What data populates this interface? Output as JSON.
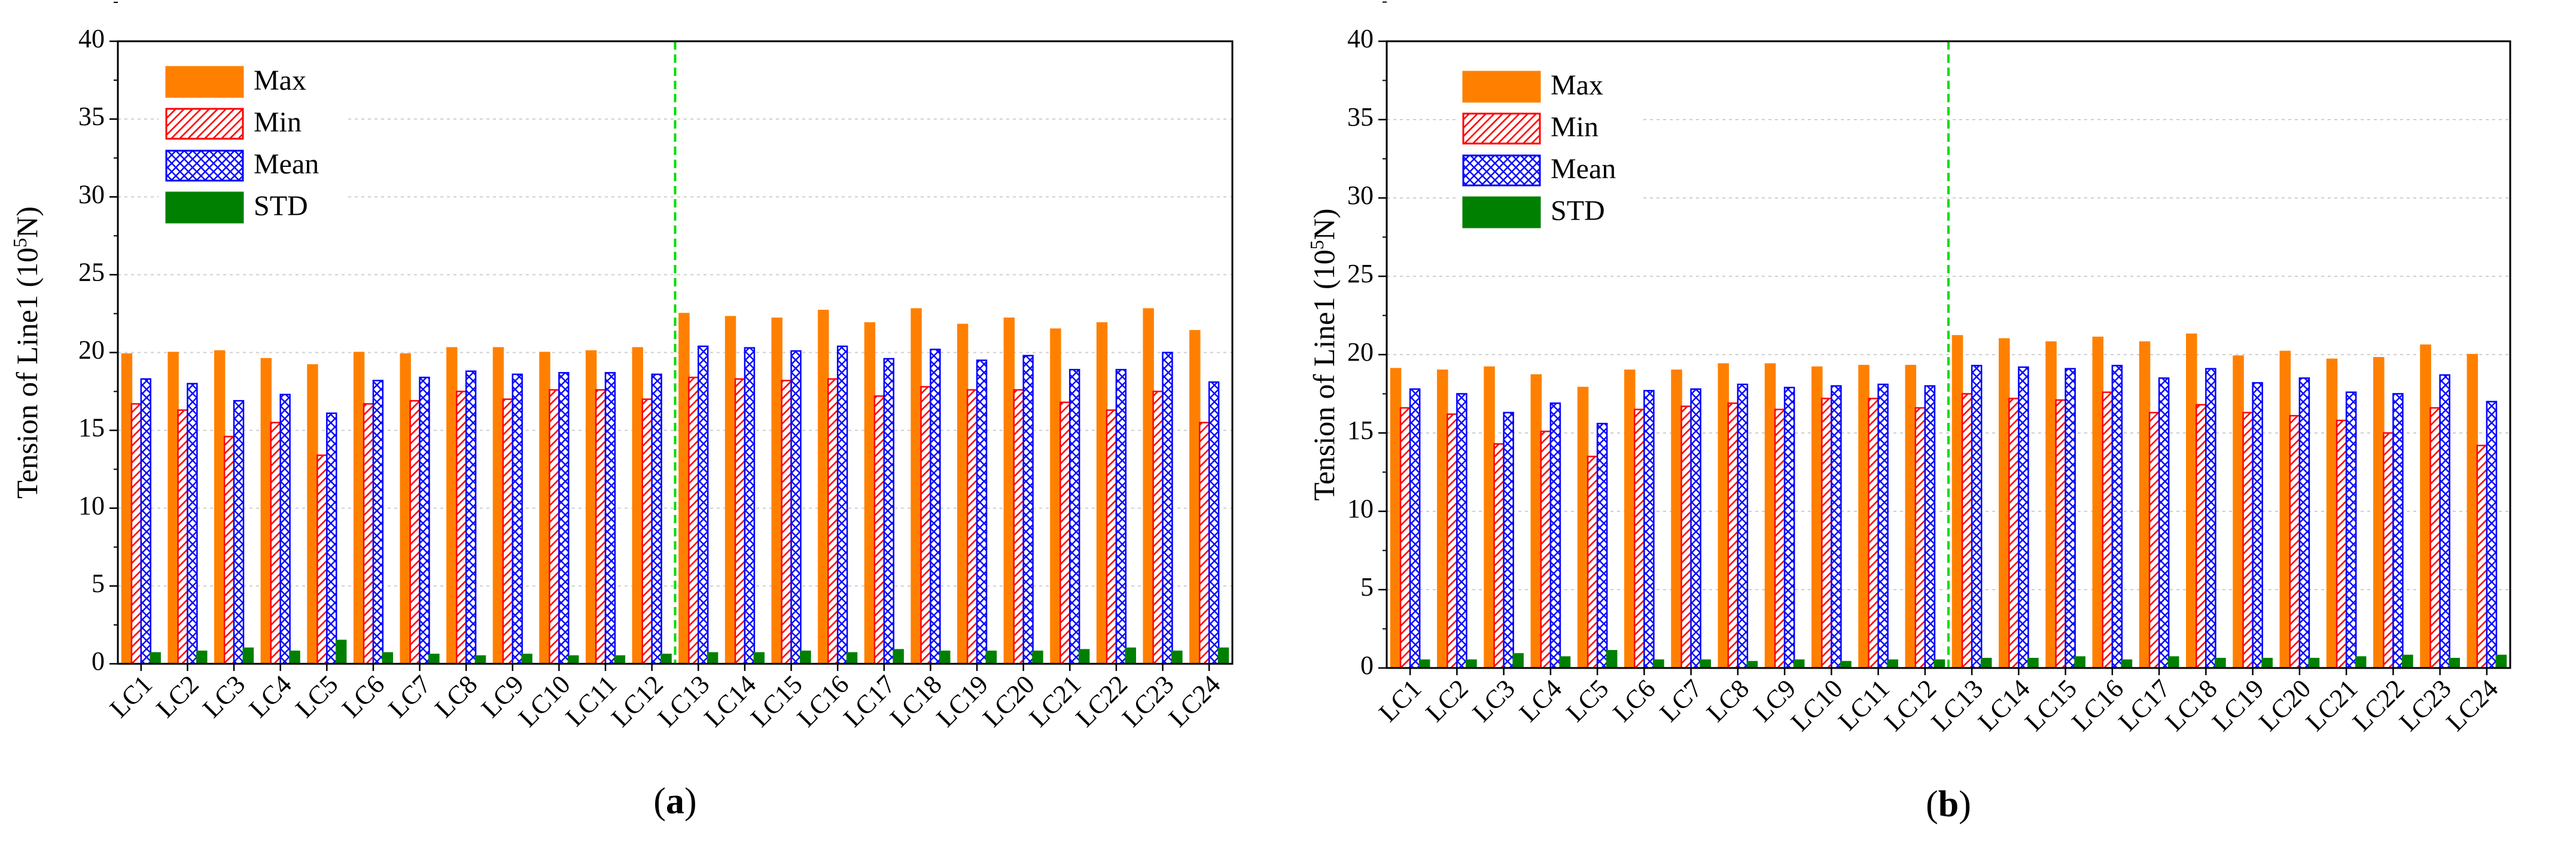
{
  "colors": {
    "max": "#ff8000",
    "min": "#ff0000",
    "mean": "#0000ff",
    "std": "#008000",
    "divider": "#00dd00"
  },
  "chart_data": [
    {
      "type": "bar",
      "panel_label": "(a)",
      "panel_letter": "a",
      "ylabel": "Tension of Line1 (10^5N)",
      "ylabel_parts": {
        "prefix": "Tension of Line1 (10",
        "sup": "5",
        "suffix": "N)"
      },
      "xlabel": "",
      "ylim": [
        0,
        40
      ],
      "yticks": [
        "0",
        "5",
        "10",
        "15",
        "20",
        "25",
        "30",
        "35",
        "40"
      ],
      "grid": true,
      "legend_position": "top-left",
      "divider_after_category": "LC12",
      "categories": [
        "LC1",
        "LC2",
        "LC3",
        "LC4",
        "LC5",
        "LC6",
        "LC7",
        "LC8",
        "LC9",
        "LC10",
        "LC11",
        "LC12",
        "LC13",
        "LC14",
        "LC15",
        "LC16",
        "LC17",
        "LC18",
        "LC19",
        "LC20",
        "LC21",
        "LC22",
        "LC23",
        "LC24"
      ],
      "series": [
        {
          "name": "Max",
          "values": [
            19.9,
            20.0,
            20.1,
            19.6,
            19.2,
            20.0,
            19.9,
            20.3,
            20.3,
            20.0,
            20.1,
            20.3,
            22.5,
            22.3,
            22.2,
            22.7,
            21.9,
            22.8,
            21.8,
            22.2,
            21.5,
            21.9,
            22.8,
            21.4
          ]
        },
        {
          "name": "Min",
          "values": [
            16.7,
            16.3,
            14.6,
            15.5,
            13.4,
            16.7,
            16.9,
            17.5,
            17.0,
            17.6,
            17.6,
            17.0,
            18.4,
            18.3,
            18.2,
            18.3,
            17.2,
            17.8,
            17.6,
            17.6,
            16.8,
            16.3,
            17.5,
            15.5
          ]
        },
        {
          "name": "Mean",
          "values": [
            18.3,
            18.0,
            16.9,
            17.3,
            16.1,
            18.2,
            18.4,
            18.8,
            18.6,
            18.7,
            18.7,
            18.6,
            20.4,
            20.3,
            20.1,
            20.4,
            19.6,
            20.2,
            19.5,
            19.8,
            18.9,
            18.9,
            20.0,
            18.1
          ]
        },
        {
          "name": "STD",
          "values": [
            0.7,
            0.8,
            1.0,
            0.8,
            1.5,
            0.7,
            0.6,
            0.5,
            0.6,
            0.5,
            0.5,
            0.6,
            0.7,
            0.7,
            0.8,
            0.7,
            0.9,
            0.8,
            0.8,
            0.8,
            0.9,
            1.0,
            0.8,
            1.0
          ]
        }
      ]
    },
    {
      "type": "bar",
      "panel_label": "(b)",
      "panel_letter": "b",
      "ylabel": "Tension of Line1 (10^5N)",
      "ylabel_parts": {
        "prefix": "Tension of Line1 (10",
        "sup": "5",
        "suffix": "N)"
      },
      "xlabel": "",
      "ylim": [
        0,
        40
      ],
      "yticks": [
        "0",
        "5",
        "10",
        "15",
        "20",
        "25",
        "30",
        "35",
        "40"
      ],
      "grid": true,
      "legend_position": "top-left",
      "divider_after_category": "LC12",
      "categories": [
        "LC1",
        "LC2",
        "LC3",
        "LC4",
        "LC5",
        "LC6",
        "LC7",
        "LC8",
        "LC9",
        "LC10",
        "LC11",
        "LC12",
        "LC13",
        "LC14",
        "LC15",
        "LC16",
        "LC17",
        "LC18",
        "LC19",
        "LC20",
        "LC21",
        "LC22",
        "LC23",
        "LC24"
      ],
      "series": [
        {
          "name": "Max",
          "values": [
            19.1,
            19.0,
            19.2,
            18.7,
            17.9,
            19.0,
            19.0,
            19.4,
            19.4,
            19.2,
            19.3,
            19.3,
            21.2,
            21.0,
            20.8,
            21.1,
            20.8,
            21.3,
            19.9,
            20.2,
            19.7,
            19.8,
            20.6,
            20.0
          ]
        },
        {
          "name": "Min",
          "values": [
            16.6,
            16.2,
            14.3,
            15.1,
            13.5,
            16.5,
            16.7,
            16.9,
            16.5,
            17.2,
            17.2,
            16.6,
            17.5,
            17.2,
            17.1,
            17.6,
            16.3,
            16.8,
            16.3,
            16.1,
            15.8,
            15.0,
            16.6,
            14.2
          ]
        },
        {
          "name": "Mean",
          "values": [
            17.8,
            17.5,
            16.3,
            16.9,
            15.6,
            17.7,
            17.8,
            18.1,
            17.9,
            18.0,
            18.1,
            18.0,
            19.3,
            19.2,
            19.1,
            19.3,
            18.5,
            19.1,
            18.2,
            18.5,
            17.6,
            17.5,
            18.7,
            17.0
          ]
        },
        {
          "name": "STD",
          "values": [
            0.5,
            0.5,
            0.9,
            0.7,
            1.1,
            0.5,
            0.5,
            0.4,
            0.5,
            0.4,
            0.5,
            0.5,
            0.6,
            0.6,
            0.7,
            0.5,
            0.7,
            0.6,
            0.6,
            0.6,
            0.7,
            0.8,
            0.6,
            0.8
          ]
        }
      ]
    }
  ]
}
